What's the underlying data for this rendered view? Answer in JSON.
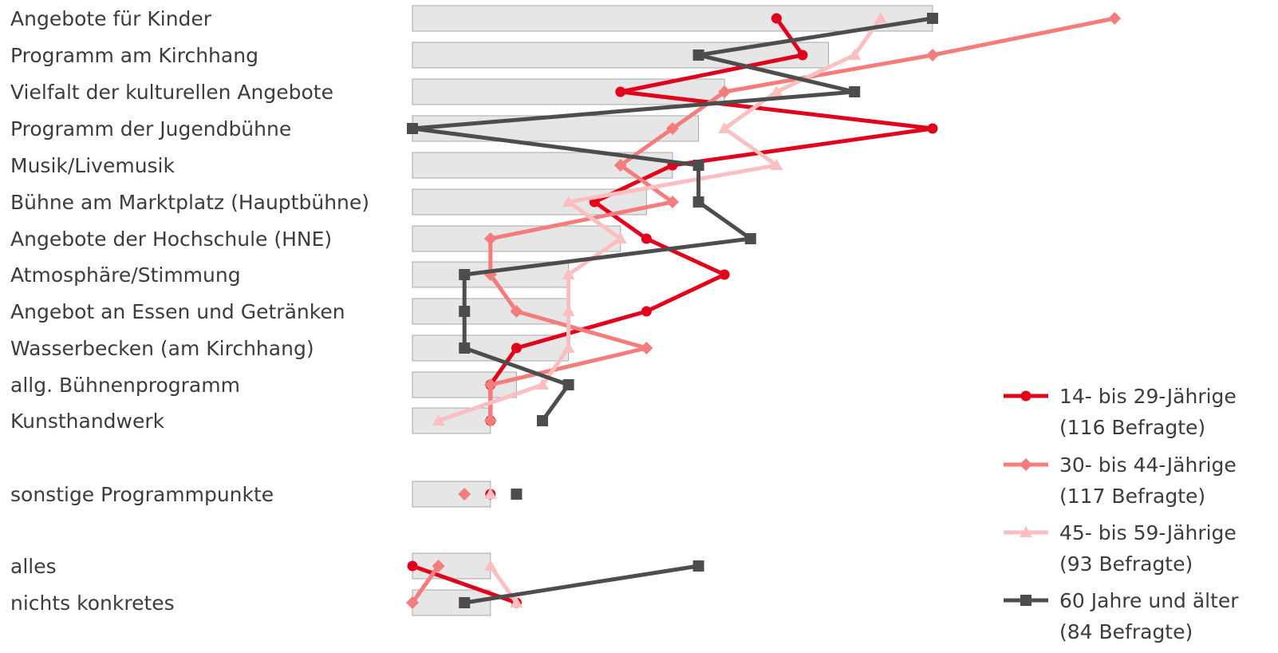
{
  "chart_data": {
    "type": "bar",
    "categories": [
      "Angebote für Kinder",
      "Programm am Kirchhang",
      "Vielfalt der kulturellen Angebote",
      "Programm der Jugendbühne",
      "Musik/Livemusik",
      "Bühne am Marktplatz (Hauptbühne)",
      "Angebote der Hochschule (HNE)",
      "Atmosphäre/Stimmung",
      "Angebot an Essen und Getränken",
      "Wasserbecken (am Kirchhang)",
      "allg. Bühnenprogramm",
      "Kunsthandwerk",
      "sonstige Programmpunkte",
      "alles",
      "nichts konkretes"
    ],
    "bars": [
      20,
      16,
      12,
      11,
      10,
      9,
      8,
      6,
      6,
      6,
      4,
      3,
      3,
      3,
      3
    ],
    "series": [
      {
        "name": "14- bis 29-Jährige",
        "name_line2": "(116 Befragte)",
        "color": "#e2001a",
        "marker": "circle",
        "values": [
          14,
          15,
          8,
          20,
          10,
          7,
          9,
          12,
          9,
          4,
          3,
          3,
          3,
          0,
          4
        ]
      },
      {
        "name": "30- bis 44-Jährige",
        "name_line2": "(117 Befragte)",
        "color": "#f47c7c",
        "marker": "diamond",
        "values": [
          27,
          20,
          12,
          10,
          8,
          10,
          3,
          3,
          4,
          9,
          3,
          3,
          2,
          1,
          0
        ]
      },
      {
        "name": "45- bis 59-Jährige",
        "name_line2": "(93 Befragte)",
        "color": "#fbbfbf",
        "marker": "triangle",
        "values": [
          18,
          17,
          14,
          12,
          14,
          6,
          8,
          6,
          6,
          6,
          5,
          1,
          3,
          3,
          4
        ]
      },
      {
        "name": "60 Jahre und älter",
        "name_line2": "(84 Befragte)",
        "color": "#4d4d4d",
        "marker": "square",
        "values": [
          20,
          11,
          17,
          0,
          11,
          11,
          13,
          2,
          2,
          2,
          6,
          5,
          4,
          11,
          2
        ]
      }
    ],
    "legend_position": "right"
  }
}
